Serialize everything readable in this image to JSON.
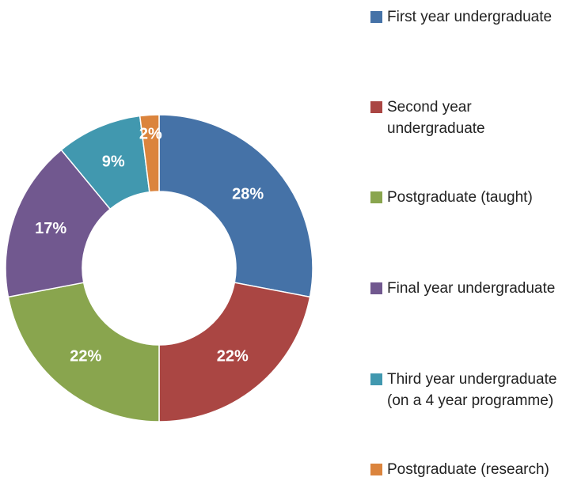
{
  "chart_data": {
    "type": "donut",
    "categories": [
      "First year undergraduate",
      "Second year undergraduate",
      "Postgraduate (taught)",
      "Final year undergraduate",
      "Third year undergraduate (on a 4 year programme)",
      "Postgraduate (research)"
    ],
    "values": [
      28,
      22,
      22,
      17,
      9,
      2
    ],
    "value_labels": [
      "28%",
      "22%",
      "22%",
      "17%",
      "9%",
      "2%"
    ],
    "colors": [
      "#4572a7",
      "#aa4643",
      "#89a54e",
      "#71588f",
      "#4198af",
      "#db843d"
    ],
    "legend": "right"
  }
}
